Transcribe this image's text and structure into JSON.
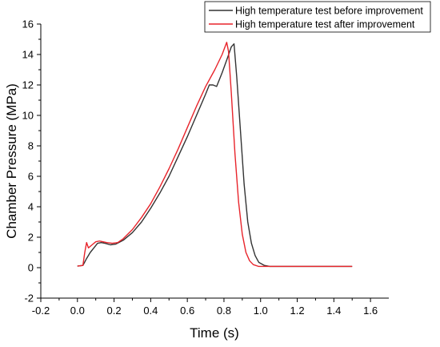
{
  "chart_data": {
    "type": "line",
    "xlabel": "Time (s)",
    "ylabel": "Chamber Pressure (MPa)",
    "xlim": [
      -0.2,
      1.7
    ],
    "ylim": [
      -2,
      16
    ],
    "x_ticks": [
      "-0.2",
      "0.0",
      "0.2",
      "0.4",
      "0.6",
      "0.8",
      "1.0",
      "1.2",
      "1.4",
      "1.6"
    ],
    "y_ticks": [
      "-2",
      "0",
      "2",
      "4",
      "6",
      "8",
      "10",
      "12",
      "14",
      "16"
    ],
    "grid": false,
    "legend_position": "top-right",
    "series": [
      {
        "name": "High temperature test before improvement",
        "color": "#333333",
        "points": [
          [
            0.0,
            0.1
          ],
          [
            0.03,
            0.15
          ],
          [
            0.05,
            0.6
          ],
          [
            0.07,
            1.0
          ],
          [
            0.09,
            1.3
          ],
          [
            0.11,
            1.6
          ],
          [
            0.13,
            1.65
          ],
          [
            0.15,
            1.6
          ],
          [
            0.18,
            1.5
          ],
          [
            0.21,
            1.55
          ],
          [
            0.25,
            1.8
          ],
          [
            0.3,
            2.3
          ],
          [
            0.35,
            3.0
          ],
          [
            0.4,
            3.9
          ],
          [
            0.45,
            4.9
          ],
          [
            0.5,
            6.0
          ],
          [
            0.55,
            7.3
          ],
          [
            0.6,
            8.6
          ],
          [
            0.65,
            10.0
          ],
          [
            0.7,
            11.4
          ],
          [
            0.72,
            12.0
          ],
          [
            0.74,
            12.0
          ],
          [
            0.76,
            11.9
          ],
          [
            0.79,
            12.8
          ],
          [
            0.82,
            13.8
          ],
          [
            0.84,
            14.5
          ],
          [
            0.855,
            14.7
          ],
          [
            0.87,
            12.5
          ],
          [
            0.89,
            9.0
          ],
          [
            0.91,
            5.5
          ],
          [
            0.93,
            3.0
          ],
          [
            0.95,
            1.6
          ],
          [
            0.97,
            0.8
          ],
          [
            0.99,
            0.35
          ],
          [
            1.02,
            0.15
          ],
          [
            1.05,
            0.08
          ],
          [
            1.5,
            0.08
          ]
        ]
      },
      {
        "name": "High temperature test after improvement",
        "color": "#e8242b",
        "points": [
          [
            0.0,
            0.1
          ],
          [
            0.03,
            0.15
          ],
          [
            0.04,
            1.0
          ],
          [
            0.05,
            1.65
          ],
          [
            0.06,
            1.3
          ],
          [
            0.08,
            1.5
          ],
          [
            0.1,
            1.7
          ],
          [
            0.12,
            1.75
          ],
          [
            0.14,
            1.7
          ],
          [
            0.16,
            1.65
          ],
          [
            0.19,
            1.6
          ],
          [
            0.22,
            1.65
          ],
          [
            0.25,
            1.9
          ],
          [
            0.3,
            2.5
          ],
          [
            0.35,
            3.3
          ],
          [
            0.4,
            4.2
          ],
          [
            0.45,
            5.3
          ],
          [
            0.5,
            6.5
          ],
          [
            0.55,
            7.8
          ],
          [
            0.6,
            9.2
          ],
          [
            0.65,
            10.6
          ],
          [
            0.7,
            11.9
          ],
          [
            0.75,
            13.0
          ],
          [
            0.79,
            14.0
          ],
          [
            0.815,
            14.8
          ],
          [
            0.825,
            14.2
          ],
          [
            0.84,
            11.5
          ],
          [
            0.86,
            7.5
          ],
          [
            0.88,
            4.3
          ],
          [
            0.9,
            2.2
          ],
          [
            0.92,
            1.0
          ],
          [
            0.94,
            0.45
          ],
          [
            0.96,
            0.2
          ],
          [
            0.99,
            0.08
          ],
          [
            1.5,
            0.08
          ]
        ]
      }
    ]
  }
}
